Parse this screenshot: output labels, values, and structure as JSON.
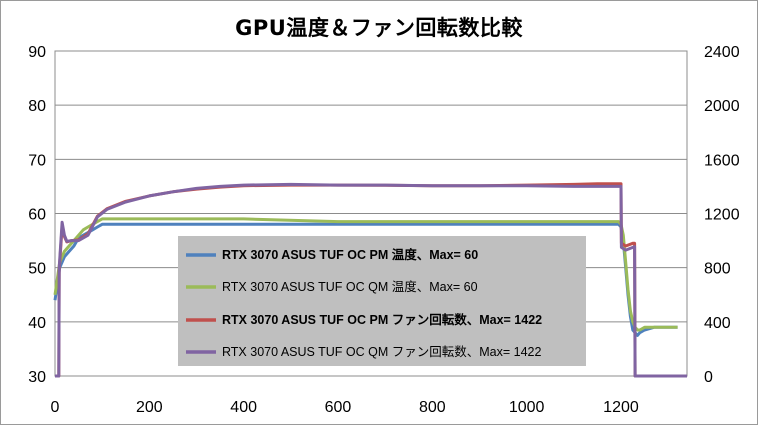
{
  "chart_data": {
    "type": "line",
    "title": "GPU温度＆ファン回転数比較",
    "xlim": [
      0,
      1340
    ],
    "x_ticks": [
      "0",
      "200",
      "400",
      "600",
      "800",
      "1000",
      "1200"
    ],
    "y_left": {
      "lim": [
        30,
        90
      ],
      "ticks": [
        "30",
        "40",
        "50",
        "60",
        "70",
        "80",
        "90"
      ]
    },
    "y_right": {
      "lim": [
        0,
        2400
      ],
      "ticks": [
        "0",
        "400",
        "800",
        "1200",
        "1600",
        "2000",
        "2400"
      ]
    },
    "grid": "horizontal",
    "legend_position": "center",
    "series": [
      {
        "name": "RTX 3070 ASUS TUF OC PM 温度、Max= 60",
        "axis": "left",
        "color": "#4f81bd",
        "bold": true,
        "x": [
          0,
          5,
          10,
          20,
          30,
          40,
          50,
          60,
          70,
          80,
          90,
          100,
          120,
          150,
          200,
          250,
          300,
          400,
          600,
          800,
          1000,
          1100,
          1195,
          1200,
          1205,
          1210,
          1215,
          1220,
          1225,
          1230,
          1235,
          1240,
          1250,
          1270,
          1300,
          1320
        ],
        "y": [
          44,
          47,
          50,
          52,
          53,
          54,
          55.5,
          56,
          56.5,
          57,
          57.5,
          58,
          58,
          58,
          58,
          58,
          58,
          58,
          58,
          58,
          58,
          58,
          58,
          57.5,
          55,
          50,
          45,
          41,
          38.5,
          38,
          37.5,
          38,
          38.5,
          39,
          39,
          39
        ]
      },
      {
        "name": "RTX 3070 ASUS TUF OC QM 温度、Max= 60",
        "axis": "left",
        "color": "#9bbb59",
        "bold": false,
        "x": [
          0,
          5,
          10,
          20,
          30,
          40,
          50,
          60,
          70,
          80,
          90,
          100,
          120,
          150,
          200,
          250,
          300,
          400,
          600,
          800,
          1000,
          1100,
          1195,
          1200,
          1205,
          1210,
          1215,
          1220,
          1225,
          1230,
          1235,
          1240,
          1250,
          1270,
          1300,
          1320
        ],
        "y": [
          45,
          48,
          51,
          53,
          54,
          55,
          56,
          57,
          57.5,
          58,
          58.5,
          59,
          59,
          59,
          59,
          59,
          59,
          59,
          58.5,
          58.5,
          58.5,
          58.5,
          58.5,
          58,
          56,
          51,
          46,
          42,
          40,
          39,
          38.5,
          38.5,
          39,
          39,
          39,
          39
        ]
      },
      {
        "name": "RTX 3070 ASUS TUF OC PM ファン回転数、Max= 1422",
        "axis": "right",
        "color": "#c0504d",
        "bold": true,
        "x": [
          0,
          8,
          9,
          15,
          20,
          25,
          35,
          50,
          70,
          90,
          110,
          150,
          200,
          250,
          300,
          350,
          400,
          500,
          600,
          700,
          800,
          900,
          1000,
          1100,
          1150,
          1200,
          1201,
          1210,
          1225,
          1229,
          1230,
          1340
        ],
        "y": [
          0,
          0,
          780,
          1100,
          1030,
          990,
          1000,
          1005,
          1050,
          1180,
          1235,
          1290,
          1330,
          1360,
          1380,
          1395,
          1405,
          1410,
          1410,
          1408,
          1405,
          1405,
          1410,
          1415,
          1420,
          1420,
          980,
          960,
          980,
          980,
          0,
          0
        ]
      },
      {
        "name": "RTX 3070 ASUS TUF OC QM ファン回転数、Max= 1422",
        "axis": "right",
        "color": "#8064a2",
        "bold": false,
        "x": [
          0,
          8,
          9,
          15,
          20,
          25,
          35,
          50,
          70,
          90,
          110,
          150,
          200,
          250,
          300,
          350,
          400,
          500,
          600,
          700,
          800,
          900,
          1000,
          1100,
          1150,
          1200,
          1201,
          1210,
          1225,
          1229,
          1230,
          1340
        ],
        "y": [
          0,
          0,
          800,
          1135,
          1040,
          995,
          1000,
          1000,
          1040,
          1175,
          1230,
          1285,
          1330,
          1360,
          1385,
          1400,
          1410,
          1415,
          1410,
          1410,
          1405,
          1405,
          1405,
          1400,
          1400,
          1400,
          950,
          930,
          950,
          955,
          0,
          0
        ]
      }
    ]
  }
}
